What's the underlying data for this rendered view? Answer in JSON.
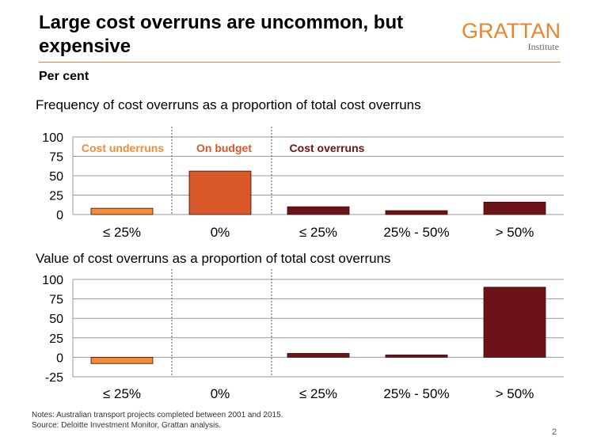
{
  "header": {
    "title": "Large cost overruns are uncommon, but expensive",
    "logo_main": "GRATTAN",
    "logo_sub": "Institute"
  },
  "unit_label": "Per cent",
  "section_labels": [
    "Cost underruns",
    "On budget",
    "Cost overruns"
  ],
  "colors": {
    "underrun": "#f58b35",
    "on_budget": "#d9582a",
    "overrun": "#6b1316",
    "accent": "#e8862e"
  },
  "chart_data": [
    {
      "type": "bar",
      "title": "Frequency of cost overruns as a proportion of total cost overruns",
      "categories": [
        "≤ 25%",
        "0%",
        "≤ 25%",
        "25% - 50%",
        "> 50%"
      ],
      "values": [
        8,
        56,
        10,
        5,
        16
      ],
      "ylim": [
        0,
        100
      ],
      "yticks": [
        0,
        25,
        50,
        75,
        100
      ],
      "grid": true,
      "bar_groups": [
        "underrun",
        "on_budget",
        "overrun",
        "overrun",
        "overrun"
      ]
    },
    {
      "type": "bar",
      "title": "Value of cost overruns as a proportion of total cost overruns",
      "categories": [
        "≤ 25%",
        "0%",
        "≤ 25%",
        "25% - 50%",
        "> 50%"
      ],
      "values": [
        -8,
        0,
        5,
        3,
        90
      ],
      "ylim": [
        -25,
        100
      ],
      "yticks": [
        -25,
        0,
        25,
        50,
        75,
        100
      ],
      "grid": true,
      "bar_groups": [
        "underrun",
        "on_budget",
        "overrun",
        "overrun",
        "overrun"
      ]
    }
  ],
  "footer": {
    "notes": "Notes: Australian transport projects completed between 2001 and 2015.",
    "source": "Source: Deloitte Investment Monitor, Grattan analysis.",
    "page_number": "2"
  }
}
